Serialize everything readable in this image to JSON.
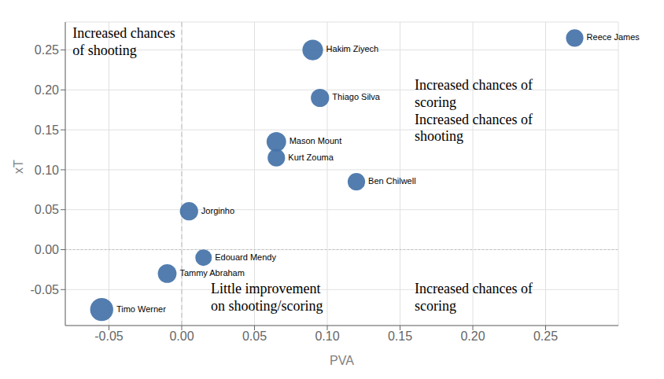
{
  "chart_data": {
    "type": "scatter",
    "xlabel": "PVA",
    "ylabel": "xT",
    "labels": [
      "Hakim Ziyech",
      "Reece James",
      "Thiago Silva",
      "Mason Mount",
      "Kurt Zouma",
      "Ben Chilwell",
      "Jorginho",
      "Edouard Mendy",
      "Tammy Abraham",
      "Timo Werner"
    ],
    "x": [
      0.09,
      0.27,
      0.095,
      0.065,
      0.065,
      0.12,
      0.005,
      0.015,
      -0.01,
      -0.055
    ],
    "values": [
      0.25,
      0.265,
      0.19,
      0.135,
      0.115,
      0.085,
      0.048,
      -0.01,
      -0.03,
      -0.075
    ],
    "sizes": [
      280,
      200,
      220,
      250,
      200,
      200,
      220,
      180,
      230,
      350
    ],
    "color": "#4472a8",
    "xlim": [
      -0.08,
      0.3
    ],
    "ylim": [
      -0.095,
      0.285
    ],
    "xticks": [
      -0.05,
      {
        "value": 0.0,
        "label": "0.00"
      },
      0.05,
      {
        "value": 0.1,
        "label": "0.10"
      },
      0.15,
      {
        "value": 0.2,
        "label": "0.20"
      },
      0.25
    ],
    "yticks": [
      -0.05,
      {
        "value": 0.0,
        "label": "0.00"
      },
      0.05,
      {
        "value": 0.1,
        "label": "0.10"
      },
      0.15,
      {
        "value": 0.2,
        "label": "0.20"
      },
      0.25
    ],
    "grid": true,
    "reference_lines": [
      {
        "axis": "x",
        "value": 0.0,
        "line_style": "dashed"
      },
      {
        "axis": "y",
        "value": 0.0,
        "line_style": "dotted"
      }
    ],
    "annotations": [
      {
        "x": -0.075,
        "y": 0.28,
        "text": "Increased chances\nof shooting"
      },
      {
        "x": 0.16,
        "y": 0.215,
        "text": "Increased chances of\nscoring\nIncreased chances of\nshooting"
      },
      {
        "x": 0.16,
        "y": -0.04,
        "text": "Increased chances of\nscoring"
      },
      {
        "x": 0.02,
        "y": -0.04,
        "text": "Little improvement\non shooting/scoring"
      }
    ]
  }
}
